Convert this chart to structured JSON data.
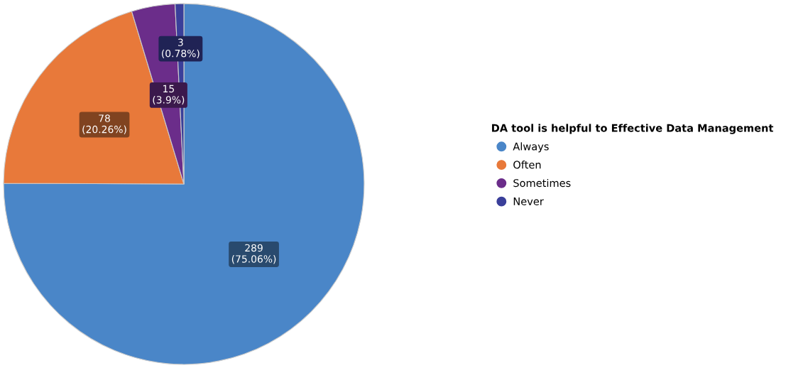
{
  "chart_data": {
    "type": "pie",
    "legend_title": "DA tool is helpful to Effective Data Management",
    "categories": [
      "Always",
      "Often",
      "Sometimes",
      "Never"
    ],
    "values": [
      289,
      78,
      15,
      3
    ],
    "colors": [
      "#4a86c8",
      "#e8793a",
      "#6b2d8a",
      "#3a3f9a"
    ],
    "value_labels": [
      "289\n(75.06%)",
      "78\n(20.26%)",
      "15\n(3.9%)",
      "3\n(0.78%)"
    ],
    "legend": "right"
  }
}
